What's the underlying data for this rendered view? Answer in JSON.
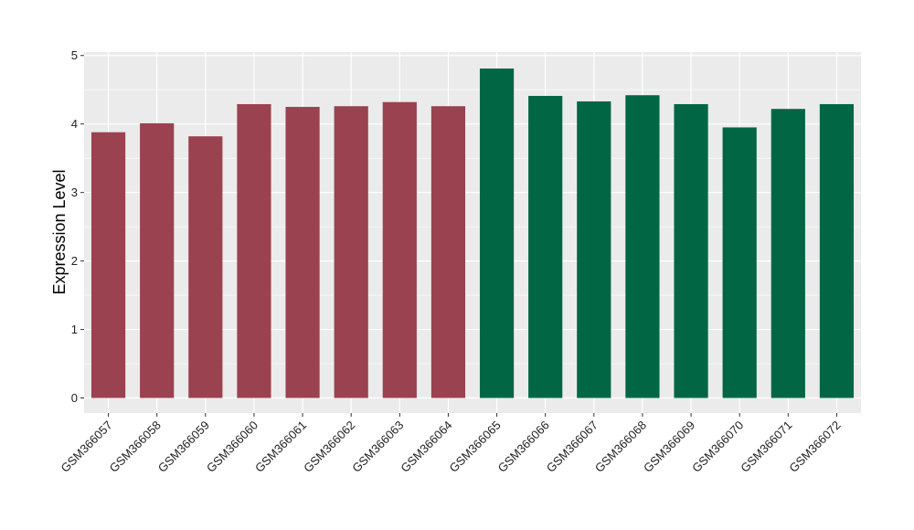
{
  "chart_data": {
    "type": "bar",
    "title": "",
    "xlabel": "",
    "ylabel": "Expression Level",
    "ylim": [
      -0.22,
      5.05
    ],
    "yticks": [
      0,
      1,
      2,
      3,
      4,
      5
    ],
    "grid": true,
    "legend": "none",
    "panel_background": "#EBEBEB",
    "grid_color": "#FFFFFF",
    "categories": [
      "GSM366057",
      "GSM366058",
      "GSM366059",
      "GSM366060",
      "GSM366061",
      "GSM366062",
      "GSM366063",
      "GSM366064",
      "GSM366065",
      "GSM366066",
      "GSM366067",
      "GSM366068",
      "GSM366069",
      "GSM366070",
      "GSM366071",
      "GSM366072"
    ],
    "values": [
      3.88,
      4.01,
      3.82,
      4.29,
      4.25,
      4.26,
      4.32,
      4.26,
      4.81,
      4.41,
      4.33,
      4.42,
      4.29,
      3.95,
      4.22,
      4.29
    ],
    "groups": [
      "red",
      "red",
      "red",
      "red",
      "red",
      "red",
      "red",
      "red",
      "green",
      "green",
      "green",
      "green",
      "green",
      "green",
      "green",
      "green"
    ],
    "colors": {
      "red": "#9A4250",
      "green": "#006644"
    }
  }
}
